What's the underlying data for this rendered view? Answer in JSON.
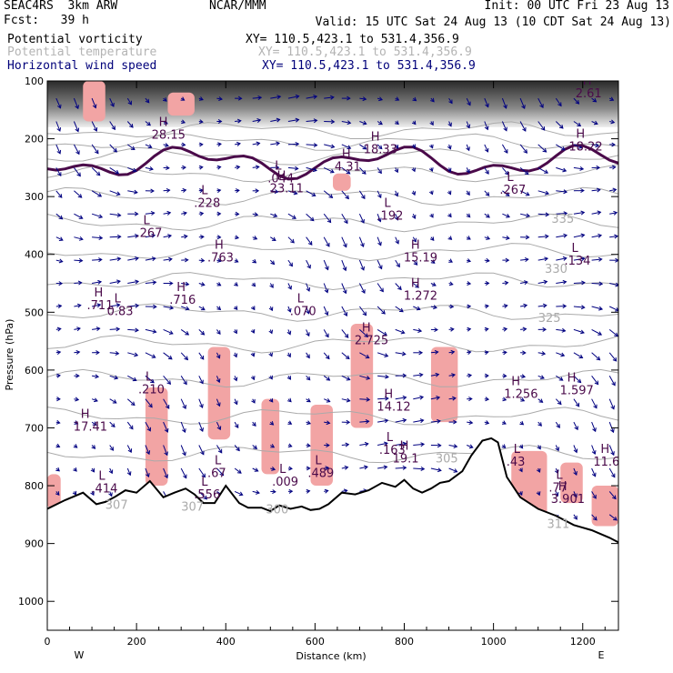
{
  "header": {
    "model": "SEAC4RS  3km ARW",
    "org": "NCAR/MMM",
    "init": "Init: 00 UTC Fri 23 Aug 13",
    "fcst": "Fcst:   39 h",
    "valid": "Valid: 15 UTC Sat 24 Aug 13 (10 CDT Sat 24 Aug 13)"
  },
  "fields": [
    {
      "name": "Potential vorticity",
      "xy": "XY= 110.5,423.1 to 531.4,356.9",
      "color": "#000000"
    },
    {
      "name": "Potential temperature",
      "xy": "XY= 110.5,423.1 to 531.4,356.9",
      "color": "#b4b4b4"
    },
    {
      "name": "Horizontal wind speed",
      "xy": "XY= 110.5,423.1 to 531.4,356.9",
      "color": "#00007a"
    }
  ],
  "chart_data": {
    "type": "heatmap",
    "xlabel": "Distance (km)",
    "ylabel": "Pressure (hPa)",
    "xlim": [
      0,
      1280
    ],
    "ylim": [
      1050,
      100
    ],
    "x_ticks": [
      0,
      200,
      400,
      600,
      800,
      1000,
      1200
    ],
    "y_ticks": [
      100,
      200,
      300,
      400,
      500,
      600,
      700,
      800,
      900,
      1000
    ],
    "x_end_labels": {
      "left": "W",
      "right": "E"
    },
    "terrain_pressure": [
      [
        0,
        840
      ],
      [
        40,
        825
      ],
      [
        80,
        812
      ],
      [
        110,
        832
      ],
      [
        130,
        828
      ],
      [
        150,
        820
      ],
      [
        175,
        808
      ],
      [
        200,
        812
      ],
      [
        230,
        792
      ],
      [
        260,
        820
      ],
      [
        285,
        812
      ],
      [
        310,
        805
      ],
      [
        330,
        815
      ],
      [
        350,
        830
      ],
      [
        375,
        830
      ],
      [
        400,
        800
      ],
      [
        430,
        830
      ],
      [
        450,
        838
      ],
      [
        480,
        838
      ],
      [
        500,
        844
      ],
      [
        520,
        834
      ],
      [
        545,
        840
      ],
      [
        570,
        836
      ],
      [
        590,
        842
      ],
      [
        610,
        840
      ],
      [
        630,
        832
      ],
      [
        660,
        812
      ],
      [
        690,
        815
      ],
      [
        720,
        808
      ],
      [
        750,
        795
      ],
      [
        780,
        802
      ],
      [
        800,
        790
      ],
      [
        820,
        805
      ],
      [
        840,
        812
      ],
      [
        860,
        805
      ],
      [
        880,
        795
      ],
      [
        900,
        792
      ],
      [
        930,
        775
      ],
      [
        950,
        748
      ],
      [
        975,
        722
      ],
      [
        995,
        718
      ],
      [
        1010,
        725
      ],
      [
        1030,
        785
      ],
      [
        1060,
        820
      ],
      [
        1100,
        840
      ],
      [
        1140,
        852
      ],
      [
        1180,
        868
      ],
      [
        1220,
        877
      ],
      [
        1260,
        890
      ],
      [
        1280,
        898
      ]
    ],
    "theta_contours": [
      {
        "label": "305",
        "x": 870,
        "p": 760
      },
      {
        "label": "307",
        "x": 300,
        "p": 843
      },
      {
        "label": "300",
        "x": 490,
        "p": 848
      },
      {
        "label": "307",
        "x": 130,
        "p": 840
      },
      {
        "label": "311",
        "x": 1120,
        "p": 873
      },
      {
        "label": "325",
        "x": 1100,
        "p": 517
      },
      {
        "label": "330",
        "x": 1115,
        "p": 432
      },
      {
        "label": "335",
        "x": 1130,
        "p": 345
      }
    ],
    "extrema": [
      {
        "type": "H",
        "value": "2.61",
        "x": 1200,
        "p": 128
      },
      {
        "type": "H",
        "value": "28.15",
        "x": 250,
        "p": 200
      },
      {
        "type": "H",
        "value": "4.31",
        "x": 660,
        "p": 255
      },
      {
        "type": "H",
        "value": "18.33",
        "x": 725,
        "p": 225
      },
      {
        "type": "H",
        "value": "18.22",
        "x": 1185,
        "p": 220
      },
      {
        "type": "L",
        "value": ".044",
        "x": 510,
        "p": 275
      },
      {
        "type": "H",
        "value": "23.11",
        "x": 515,
        "p": 293
      },
      {
        "type": "L",
        "value": ".267",
        "x": 1030,
        "p": 295
      },
      {
        "type": "L",
        "value": ".228",
        "x": 345,
        "p": 318
      },
      {
        "type": "L",
        "value": ".192",
        "x": 755,
        "p": 340
      },
      {
        "type": "L",
        "value": ".267",
        "x": 215,
        "p": 370
      },
      {
        "type": "H",
        "value": ".763",
        "x": 375,
        "p": 412
      },
      {
        "type": "H",
        "value": "15.19",
        "x": 815,
        "p": 412
      },
      {
        "type": "L",
        "value": ".134",
        "x": 1175,
        "p": 418
      },
      {
        "type": "H",
        "value": ".716",
        "x": 290,
        "p": 485
      },
      {
        "type": "H",
        "value": "1.272",
        "x": 815,
        "p": 478
      },
      {
        "type": "L",
        "value": ".070",
        "x": 560,
        "p": 505
      },
      {
        "type": "H",
        "value": ".711",
        "x": 105,
        "p": 495
      },
      {
        "type": "L",
        "value": "0.83",
        "x": 150,
        "p": 505
      },
      {
        "type": "H",
        "value": "2.725",
        "x": 705,
        "p": 555
      },
      {
        "type": "L",
        "value": ".210",
        "x": 220,
        "p": 640
      },
      {
        "type": "H",
        "value": "1.256",
        "x": 1040,
        "p": 648
      },
      {
        "type": "H",
        "value": "1.597",
        "x": 1165,
        "p": 642
      },
      {
        "type": "H",
        "value": "14.12",
        "x": 755,
        "p": 670
      },
      {
        "type": "H",
        "value": "17.41",
        "x": 75,
        "p": 705
      },
      {
        "type": "L",
        "value": ".163",
        "x": 760,
        "p": 745
      },
      {
        "type": "H",
        "value": "19.1",
        "x": 790,
        "p": 760
      },
      {
        "type": "L",
        "value": ".43",
        "x": 1045,
        "p": 765
      },
      {
        "type": "H",
        "value": "11.6",
        "x": 1240,
        "p": 765
      },
      {
        "type": "L",
        "value": ".67",
        "x": 375,
        "p": 785
      },
      {
        "type": "L",
        "value": ".489",
        "x": 600,
        "p": 785
      },
      {
        "type": "L",
        "value": ".009",
        "x": 520,
        "p": 800
      },
      {
        "type": "L",
        "value": ".77",
        "x": 1140,
        "p": 810
      },
      {
        "type": "L",
        "value": ".414",
        "x": 115,
        "p": 812
      },
      {
        "type": "L",
        "value": ".556",
        "x": 345,
        "p": 822
      },
      {
        "type": "H",
        "value": "3.901",
        "x": 1145,
        "p": 830
      }
    ],
    "vorticity_patches": [
      {
        "x": [
          220,
          270
        ],
        "p": [
          630,
          800
        ]
      },
      {
        "x": [
          360,
          410
        ],
        "p": [
          560,
          720
        ]
      },
      {
        "x": [
          480,
          520
        ],
        "p": [
          650,
          780
        ]
      },
      {
        "x": [
          590,
          640
        ],
        "p": [
          660,
          800
        ]
      },
      {
        "x": [
          680,
          730
        ],
        "p": [
          520,
          700
        ]
      },
      {
        "x": [
          640,
          680
        ],
        "p": [
          260,
          290
        ]
      },
      {
        "x": [
          860,
          920
        ],
        "p": [
          560,
          690
        ]
      },
      {
        "x": [
          1040,
          1120
        ],
        "p": [
          740,
          860
        ]
      },
      {
        "x": [
          1150,
          1200
        ],
        "p": [
          760,
          830
        ]
      },
      {
        "x": [
          0,
          30
        ],
        "p": [
          780,
          840
        ]
      },
      {
        "x": [
          80,
          130
        ],
        "p": [
          100,
          170
        ]
      },
      {
        "x": [
          270,
          330
        ],
        "p": [
          120,
          160
        ]
      },
      {
        "x": [
          1220,
          1280
        ],
        "p": [
          800,
          870
        ]
      }
    ],
    "colors": {
      "pv_positive": "#f2a4a4",
      "pv_contour": "#4a0a4a",
      "theta": "#aaaaaa",
      "wind": "#000080",
      "terrain": "#000000"
    }
  }
}
